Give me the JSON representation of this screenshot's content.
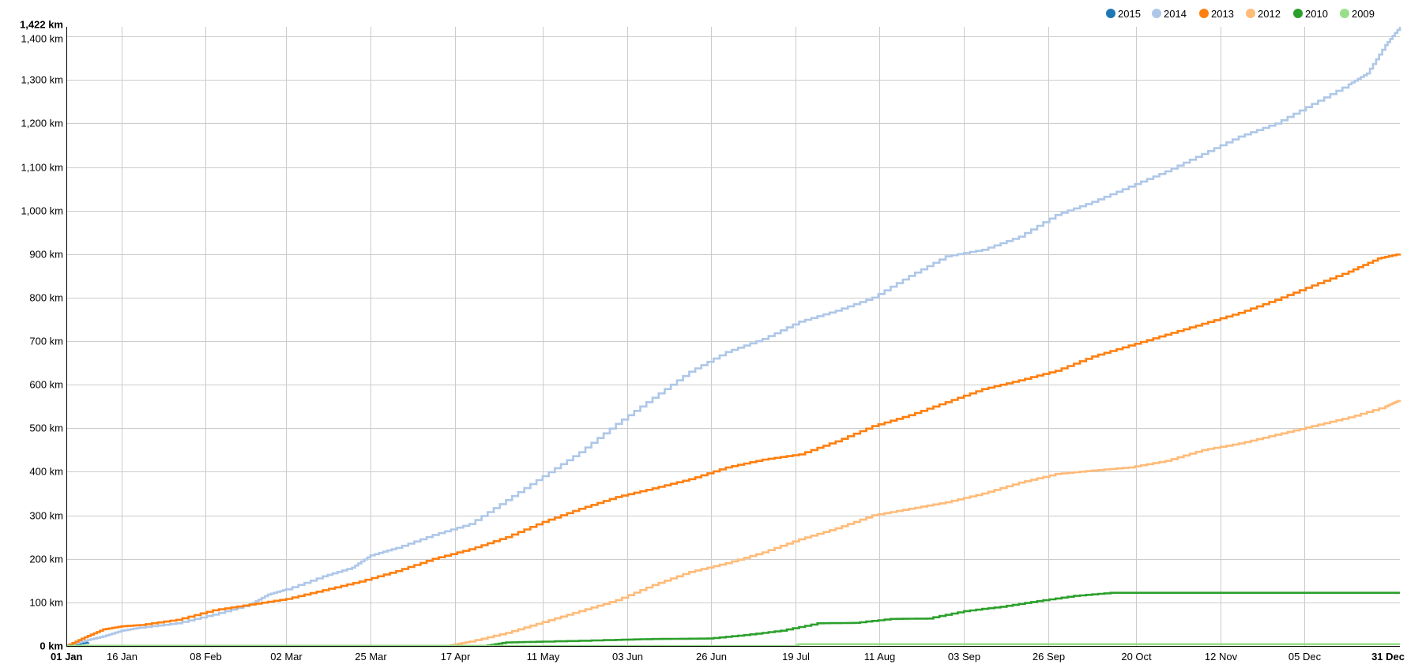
{
  "chart_data": {
    "type": "line",
    "step": true,
    "x_axis": {
      "unit": "day of year",
      "domain": [
        "01 Jan",
        "31 Dec"
      ],
      "ticks": [
        {
          "label": "01 Jan",
          "day": 0,
          "bold": true
        },
        {
          "label": "16 Jan",
          "day": 15
        },
        {
          "label": "08 Feb",
          "day": 38
        },
        {
          "label": "02 Mar",
          "day": 60
        },
        {
          "label": "25 Mar",
          "day": 83
        },
        {
          "label": "17 Apr",
          "day": 106
        },
        {
          "label": "11 May",
          "day": 130
        },
        {
          "label": "03 Jun",
          "day": 153
        },
        {
          "label": "26 Jun",
          "day": 176
        },
        {
          "label": "19 Jul",
          "day": 199
        },
        {
          "label": "11 Aug",
          "day": 222
        },
        {
          "label": "03 Sep",
          "day": 245
        },
        {
          "label": "26 Sep",
          "day": 268
        },
        {
          "label": "20 Oct",
          "day": 292
        },
        {
          "label": "12 Nov",
          "day": 315
        },
        {
          "label": "05 Dec",
          "day": 338
        },
        {
          "label": "31 Dec",
          "day": 364,
          "bold": true
        }
      ]
    },
    "y_axis": {
      "unit": "km",
      "range": [
        0,
        1422
      ],
      "ticks": [
        {
          "value": 0,
          "label": "0 km",
          "bold": true
        },
        {
          "value": 100,
          "label": "100 km"
        },
        {
          "value": 200,
          "label": "200 km"
        },
        {
          "value": 300,
          "label": "300 km"
        },
        {
          "value": 400,
          "label": "400 km"
        },
        {
          "value": 500,
          "label": "500 km"
        },
        {
          "value": 600,
          "label": "600 km"
        },
        {
          "value": 700,
          "label": "700 km"
        },
        {
          "value": 800,
          "label": "800 km"
        },
        {
          "value": 900,
          "label": "900 km"
        },
        {
          "value": 1000,
          "label": "1,000 km"
        },
        {
          "value": 1100,
          "label": "1,100 km"
        },
        {
          "value": 1200,
          "label": "1,200 km"
        },
        {
          "value": 1300,
          "label": "1,300 km"
        },
        {
          "value": 1400,
          "label": "1,400 km"
        },
        {
          "value": 1422,
          "label": "1,422 km",
          "bold": true
        }
      ]
    },
    "grid": true,
    "legend_position": "top-right",
    "series": [
      {
        "name": "2015",
        "color": "#1f77b4",
        "points": [
          [
            0,
            0
          ],
          [
            3,
            5
          ],
          [
            6,
            8
          ]
        ]
      },
      {
        "name": "2014",
        "color": "#aec7e8",
        "points": [
          [
            0,
            0
          ],
          [
            5,
            12
          ],
          [
            10,
            22
          ],
          [
            15,
            35
          ],
          [
            20,
            42
          ],
          [
            30,
            52
          ],
          [
            40,
            72
          ],
          [
            50,
            95
          ],
          [
            55,
            118
          ],
          [
            60,
            130
          ],
          [
            70,
            160
          ],
          [
            78,
            180
          ],
          [
            83,
            208
          ],
          [
            90,
            225
          ],
          [
            100,
            255
          ],
          [
            110,
            280
          ],
          [
            120,
            335
          ],
          [
            130,
            390
          ],
          [
            140,
            445
          ],
          [
            150,
            510
          ],
          [
            160,
            570
          ],
          [
            170,
            630
          ],
          [
            180,
            675
          ],
          [
            190,
            705
          ],
          [
            200,
            745
          ],
          [
            210,
            770
          ],
          [
            220,
            800
          ],
          [
            230,
            850
          ],
          [
            240,
            895
          ],
          [
            250,
            910
          ],
          [
            260,
            940
          ],
          [
            270,
            990
          ],
          [
            280,
            1020
          ],
          [
            290,
            1055
          ],
          [
            300,
            1090
          ],
          [
            310,
            1130
          ],
          [
            320,
            1170
          ],
          [
            330,
            1200
          ],
          [
            340,
            1245
          ],
          [
            350,
            1290
          ],
          [
            355,
            1315
          ],
          [
            360,
            1380
          ],
          [
            364,
            1422
          ]
        ]
      },
      {
        "name": "2013",
        "color": "#ff7f0e",
        "points": [
          [
            0,
            0
          ],
          [
            5,
            20
          ],
          [
            10,
            38
          ],
          [
            15,
            45
          ],
          [
            20,
            48
          ],
          [
            30,
            60
          ],
          [
            40,
            82
          ],
          [
            50,
            95
          ],
          [
            60,
            108
          ],
          [
            70,
            128
          ],
          [
            80,
            148
          ],
          [
            90,
            172
          ],
          [
            100,
            200
          ],
          [
            110,
            222
          ],
          [
            120,
            250
          ],
          [
            130,
            285
          ],
          [
            140,
            315
          ],
          [
            150,
            342
          ],
          [
            160,
            362
          ],
          [
            170,
            383
          ],
          [
            180,
            410
          ],
          [
            190,
            428
          ],
          [
            200,
            440
          ],
          [
            210,
            470
          ],
          [
            220,
            505
          ],
          [
            230,
            530
          ],
          [
            240,
            560
          ],
          [
            250,
            590
          ],
          [
            260,
            610
          ],
          [
            270,
            632
          ],
          [
            280,
            665
          ],
          [
            290,
            690
          ],
          [
            300,
            715
          ],
          [
            310,
            740
          ],
          [
            320,
            765
          ],
          [
            330,
            795
          ],
          [
            340,
            828
          ],
          [
            350,
            860
          ],
          [
            358,
            890
          ],
          [
            364,
            901
          ]
        ]
      },
      {
        "name": "2012",
        "color": "#ffbb78",
        "points": [
          [
            0,
            0
          ],
          [
            104,
            0
          ],
          [
            110,
            10
          ],
          [
            120,
            30
          ],
          [
            130,
            55
          ],
          [
            140,
            80
          ],
          [
            150,
            105
          ],
          [
            160,
            140
          ],
          [
            170,
            170
          ],
          [
            180,
            190
          ],
          [
            190,
            215
          ],
          [
            200,
            245
          ],
          [
            210,
            270
          ],
          [
            220,
            300
          ],
          [
            230,
            315
          ],
          [
            240,
            330
          ],
          [
            250,
            350
          ],
          [
            260,
            375
          ],
          [
            270,
            395
          ],
          [
            280,
            403
          ],
          [
            290,
            410
          ],
          [
            300,
            425
          ],
          [
            310,
            450
          ],
          [
            320,
            465
          ],
          [
            330,
            485
          ],
          [
            340,
            505
          ],
          [
            350,
            525
          ],
          [
            360,
            550
          ],
          [
            364,
            565
          ]
        ]
      },
      {
        "name": "2010",
        "color": "#2ca02c",
        "points": [
          [
            0,
            0
          ],
          [
            114,
            0
          ],
          [
            120,
            8
          ],
          [
            130,
            10
          ],
          [
            150,
            14
          ],
          [
            160,
            16
          ],
          [
            175,
            17
          ],
          [
            185,
            25
          ],
          [
            195,
            35
          ],
          [
            205,
            52
          ],
          [
            215,
            53
          ],
          [
            225,
            62
          ],
          [
            235,
            63
          ],
          [
            245,
            80
          ],
          [
            255,
            90
          ],
          [
            265,
            103
          ],
          [
            275,
            115
          ],
          [
            285,
            122
          ],
          [
            364,
            122
          ]
        ]
      },
      {
        "name": "2009",
        "color": "#98df8a",
        "points": [
          [
            0,
            0
          ],
          [
            199,
            0
          ],
          [
            200,
            4
          ],
          [
            364,
            4
          ]
        ]
      }
    ]
  }
}
